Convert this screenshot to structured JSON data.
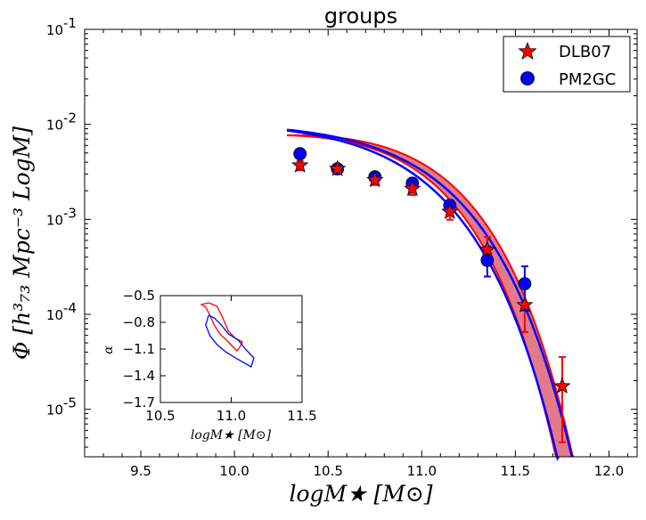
{
  "chart_data": {
    "type": "scatter",
    "title": "groups",
    "xlabel": "logM★   [M⊙]",
    "ylabel": "Φ  [h³₇₃ Mpc⁻³ LogM]",
    "xlim": [
      9.2,
      12.15
    ],
    "ylim_log10": [
      -5.5,
      -1
    ],
    "yscale": "log",
    "x_ticks": [
      9.5,
      10.0,
      10.5,
      11.0,
      11.5,
      12.0
    ],
    "x_tick_labels": [
      "9.5",
      "10.0",
      "10.5",
      "11.0",
      "11.5",
      "12.0"
    ],
    "y_ticks_log10": [
      -5,
      -4,
      -3,
      -2,
      -1
    ],
    "y_tick_labels": [
      {
        "base": "10",
        "exp": "-5"
      },
      {
        "base": "10",
        "exp": "-4"
      },
      {
        "base": "10",
        "exp": "-3"
      },
      {
        "base": "10",
        "exp": "-2"
      },
      {
        "base": "10",
        "exp": "-1"
      }
    ],
    "legend": {
      "location": "top-right",
      "entries": [
        {
          "label": "DLB07",
          "marker": "star",
          "color": "#ff0000"
        },
        {
          "label": "PM2GC",
          "marker": "circle",
          "color": "#0000ff"
        }
      ]
    },
    "series": [
      {
        "name": "DLB07",
        "marker": "star",
        "color": "#ff0000",
        "x": [
          10.35,
          10.55,
          10.75,
          10.95,
          11.15,
          11.35,
          11.55,
          11.75
        ],
        "y": [
          0.0037,
          0.0034,
          0.0026,
          0.0021,
          0.0012,
          0.00048,
          0.000125,
          1.75e-05
        ],
        "err_lo": [
          0.0033,
          0.0031,
          0.0023,
          0.0018,
          0.00099,
          0.00033,
          6.5e-05,
          4.5e-06
        ],
        "err_hi": [
          0.0041,
          0.0037,
          0.0029,
          0.0024,
          0.00145,
          0.00065,
          0.00019,
          3.55e-05
        ]
      },
      {
        "name": "PM2GC",
        "marker": "circle",
        "color": "#0000ff",
        "x": [
          10.35,
          10.55,
          10.75,
          10.95,
          11.15,
          11.35,
          11.55
        ],
        "y": [
          0.0049,
          0.0034,
          0.0028,
          0.0024,
          0.0014,
          0.00037,
          0.00021
        ],
        "err_lo": [
          0.0044,
          0.0031,
          0.0025,
          0.0021,
          0.0012,
          0.00025,
          0.00011
        ],
        "err_hi": [
          0.0054,
          0.0037,
          0.0031,
          0.0027,
          0.0016,
          0.00052,
          0.00032
        ]
      }
    ],
    "fit_curves": [
      {
        "name": "DLB07 upper",
        "color": "#ff0000",
        "logPhiStar": -2.2,
        "logMstar": 10.85,
        "alpha": -0.72,
        "x_range": [
          10.28,
          12.05
        ]
      },
      {
        "name": "DLB07 lower",
        "color": "#ff0000",
        "logPhiStar": -2.2,
        "logMstar": 10.76,
        "alpha": -0.72,
        "x_range": [
          10.28,
          12.05
        ]
      },
      {
        "name": "PM2GC upper",
        "color": "#0000ff",
        "logPhiStar": -2.28,
        "logMstar": 10.88,
        "alpha": -0.95,
        "x_range": [
          10.28,
          12.05
        ]
      },
      {
        "name": "PM2GC lower",
        "color": "#0000ff",
        "logPhiStar": -2.27,
        "logMstar": 10.8,
        "alpha": -0.95,
        "x_range": [
          10.28,
          12.05
        ]
      }
    ],
    "inset": {
      "xlabel": "logM★   [M⊙]",
      "ylabel": "α",
      "xlim": [
        10.5,
        11.5
      ],
      "ylim": [
        -1.7,
        -0.5
      ],
      "x_ticks": [
        10.5,
        11.0,
        11.5
      ],
      "x_tick_labels": [
        "10.5",
        "11.0",
        "11.5"
      ],
      "y_ticks": [
        -0.5,
        -0.8,
        -1.1,
        -1.4,
        -1.7
      ],
      "y_tick_labels": [
        "−0.5",
        "−0.8",
        "−1.1",
        "−1.4",
        "−1.7"
      ],
      "contours": [
        {
          "name": "DLB07",
          "color": "#ff0000",
          "points": [
            [
              10.84,
              -0.58
            ],
            [
              10.9,
              -0.62
            ],
            [
              10.94,
              -0.75
            ],
            [
              10.98,
              -0.9
            ],
            [
              11.03,
              -0.98
            ],
            [
              11.08,
              -1.02
            ],
            [
              11.06,
              -1.08
            ],
            [
              11.04,
              -1.12
            ],
            [
              10.98,
              -1.02
            ],
            [
              10.92,
              -0.93
            ],
            [
              10.88,
              -0.83
            ],
            [
              10.85,
              -0.72
            ],
            [
              10.82,
              -0.63
            ],
            [
              10.79,
              -0.6
            ],
            [
              10.84,
              -0.58
            ]
          ]
        },
        {
          "name": "PM2GC",
          "color": "#0000ff",
          "points": [
            [
              10.84,
              -0.72
            ],
            [
              10.88,
              -0.75
            ],
            [
              10.93,
              -0.83
            ],
            [
              10.98,
              -0.93
            ],
            [
              11.05,
              -1.0
            ],
            [
              11.1,
              -1.1
            ],
            [
              11.16,
              -1.2
            ],
            [
              11.14,
              -1.3
            ],
            [
              11.03,
              -1.2
            ],
            [
              10.96,
              -1.13
            ],
            [
              10.9,
              -1.05
            ],
            [
              10.85,
              -0.95
            ],
            [
              10.82,
              -0.83
            ],
            [
              10.84,
              -0.72
            ]
          ]
        }
      ]
    }
  }
}
